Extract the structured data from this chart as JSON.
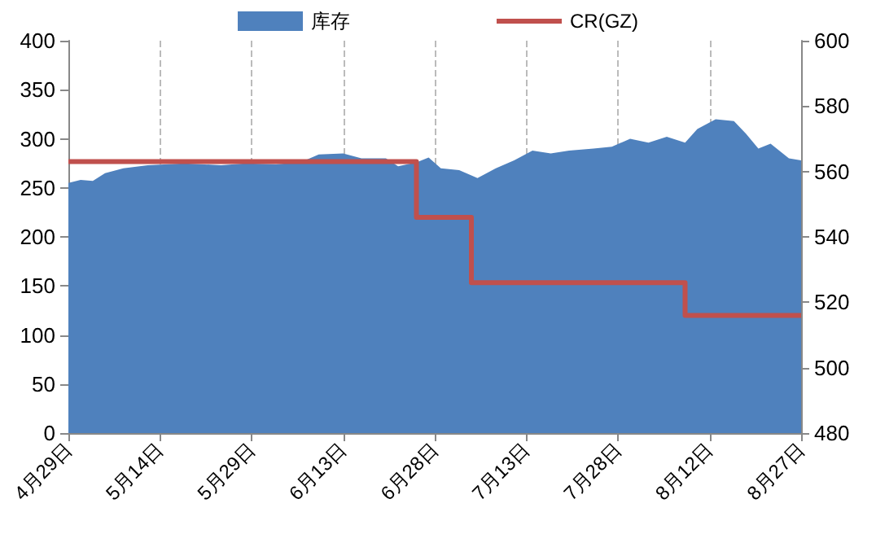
{
  "chart_data": {
    "type": "area",
    "legend": "top",
    "grid": "x",
    "xlim": [
      "--04-29",
      "--08-27"
    ],
    "xticks": [
      {
        "value": "--04-29",
        "label": "4月29日"
      },
      {
        "value": "--05-14",
        "label": "5月14日"
      },
      {
        "value": "--05-29",
        "label": "5月29日"
      },
      {
        "value": "--06-13",
        "label": "6月13日"
      },
      {
        "value": "--06-28",
        "label": "6月28日"
      },
      {
        "value": "--07-13",
        "label": "7月13日"
      },
      {
        "value": "--07-28",
        "label": "7月28日"
      },
      {
        "value": "--08-12",
        "label": "8月12日"
      },
      {
        "value": "--08-27",
        "label": "8月27日"
      }
    ],
    "ylim": [
      0,
      400
    ],
    "yticks": [
      0,
      50,
      100,
      150,
      200,
      250,
      300,
      350,
      400
    ],
    "y2lim": [
      480,
      600
    ],
    "y2ticks": [
      480,
      500,
      520,
      540,
      560,
      580,
      600
    ],
    "series": [
      {
        "name": "库存",
        "color": "#4f81bd",
        "x": [
          "--04-29",
          "--05-01",
          "--05-03",
          "--05-05",
          "--05-08",
          "--05-12",
          "--05-18",
          "--05-24",
          "--05-28",
          "--06-02",
          "--06-06",
          "--06-09",
          "--06-13",
          "--06-16",
          "--06-20",
          "--06-22",
          "--06-25",
          "--06-27",
          "--06-29",
          "--07-02",
          "--07-05",
          "--07-08",
          "--07-11",
          "--07-14",
          "--07-17",
          "--07-20",
          "--07-24",
          "--07-27",
          "--07-30",
          "--08-02",
          "--08-05",
          "--08-08",
          "--08-10",
          "--08-13",
          "--08-16",
          "--08-18",
          "--08-20",
          "--08-22",
          "--08-25",
          "--08-27"
        ],
        "values": [
          255,
          258,
          257,
          265,
          270,
          273,
          275,
          273,
          275,
          274,
          276,
          284,
          285,
          280,
          280,
          272,
          276,
          281,
          270,
          268,
          260,
          270,
          278,
          288,
          285,
          288,
          290,
          292,
          300,
          296,
          302,
          296,
          310,
          320,
          318,
          305,
          290,
          295,
          280,
          278
        ]
      },
      {
        "name": "CR(GZ)",
        "type": "step",
        "axis": "y2",
        "color": "#c0504d",
        "x": [
          "--04-29",
          "--06-25",
          "--07-04",
          "--08-08",
          "--08-27"
        ],
        "values": [
          563,
          546,
          526,
          516,
          516
        ]
      }
    ]
  }
}
